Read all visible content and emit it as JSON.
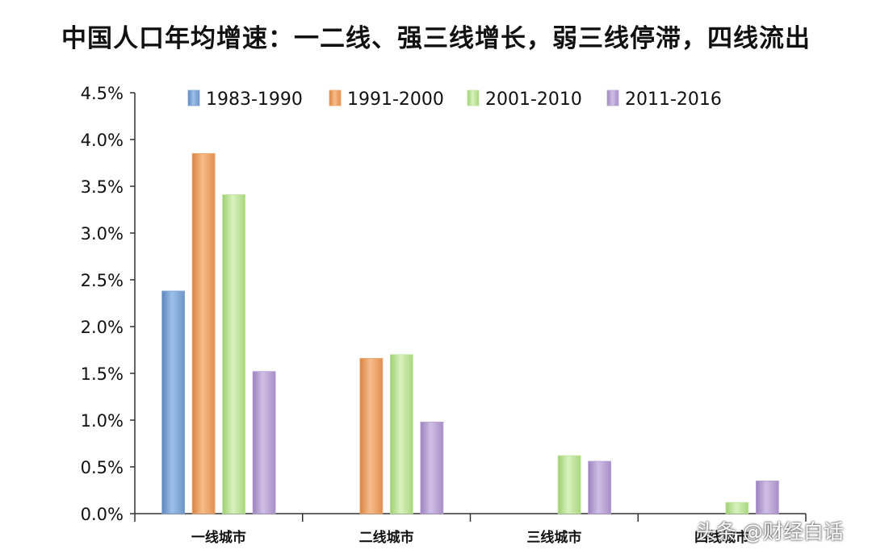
{
  "chart_data": {
    "type": "bar",
    "title": "中国人口年均增速：一二线、强三线增长，弱三线停滞，四线流出",
    "xlabel": "",
    "ylabel": "",
    "categories": [
      "一线城市",
      "二线城市",
      "三线城市",
      "四线城市"
    ],
    "yticks": [
      "0.0%",
      "0.5%",
      "1.0%",
      "1.5%",
      "2.0%",
      "2.5%",
      "3.0%",
      "3.5%",
      "4.0%",
      "4.5%"
    ],
    "ylim": [
      0,
      4.5
    ],
    "grid": false,
    "legend_position": "top",
    "series": [
      {
        "name": "1983-1990",
        "color": "#7ea6d8",
        "values": [
          2.38,
          null,
          null,
          null
        ]
      },
      {
        "name": "1991-2000",
        "color": "#f0a468",
        "values": [
          3.85,
          1.66,
          null,
          null
        ]
      },
      {
        "name": "2001-2010",
        "color": "#bfe49c",
        "values": [
          3.41,
          1.7,
          0.62,
          0.12
        ]
      },
      {
        "name": "2011-2016",
        "color": "#b8a2d4",
        "values": [
          1.52,
          0.98,
          0.56,
          0.35
        ]
      }
    ]
  },
  "watermark": "头条 @财经白话"
}
